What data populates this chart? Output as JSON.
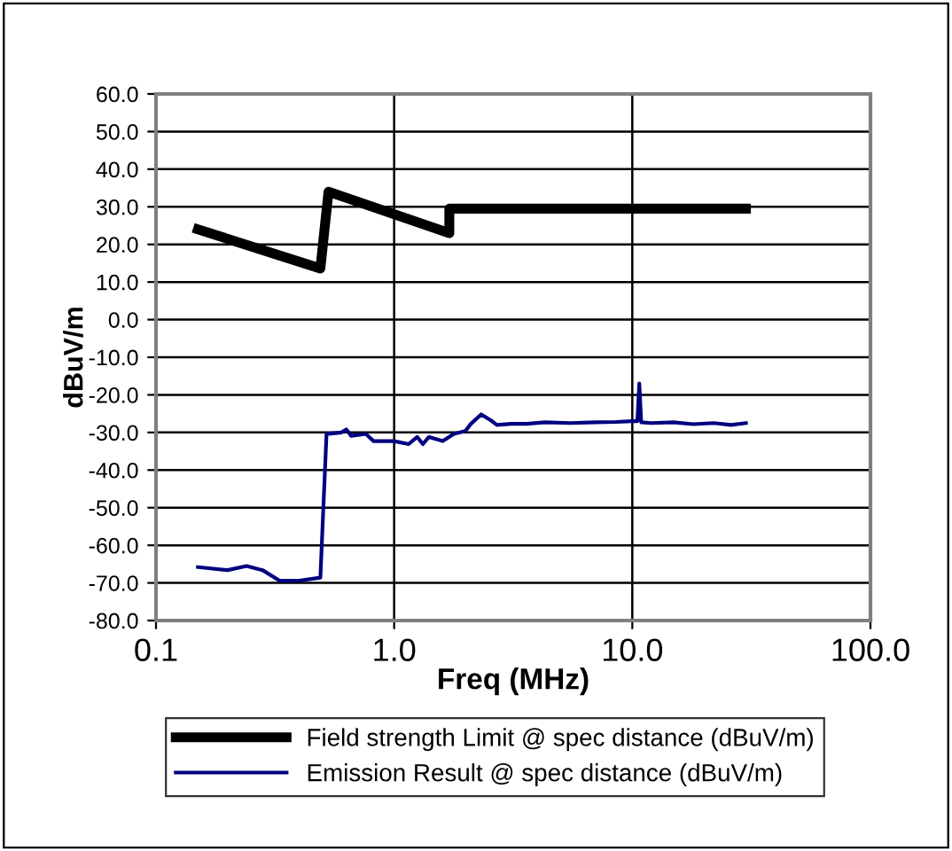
{
  "chart_data": {
    "type": "line",
    "xlabel": "Freq (MHz)",
    "ylabel": "dBuV/m",
    "log": "x",
    "xlim": [
      0.1,
      100
    ],
    "xticks": [
      {
        "value": 0.1,
        "label": "0.1"
      },
      {
        "value": 1,
        "label": "1.0"
      },
      {
        "value": 10,
        "label": "10.0"
      },
      {
        "value": 100,
        "label": "100.0"
      }
    ],
    "ylim": [
      -80,
      60
    ],
    "yticks": [
      {
        "value": -80,
        "label": "-80.0"
      },
      {
        "value": -70,
        "label": "-70.0"
      },
      {
        "value": -60,
        "label": "-60.0"
      },
      {
        "value": -50,
        "label": "-50.0"
      },
      {
        "value": -40,
        "label": "-40.0"
      },
      {
        "value": -30,
        "label": "-30.0"
      },
      {
        "value": -20,
        "label": "-20.0"
      },
      {
        "value": -10,
        "label": "-10.0"
      },
      {
        "value": 0,
        "label": "0.0"
      },
      {
        "value": 10,
        "label": "10.0"
      },
      {
        "value": 20,
        "label": "20.0"
      },
      {
        "value": 30,
        "label": "30.0"
      },
      {
        "value": 40,
        "label": "40.0"
      },
      {
        "value": 50,
        "label": "50.0"
      },
      {
        "value": 60,
        "label": "60.0"
      }
    ],
    "grid": true,
    "legend": "bottom",
    "series": [
      {
        "name": "Field strength Limit @ spec distance (dBuV/m)",
        "color": "#000000",
        "x": [
          0.15,
          0.49,
          0.53,
          1.705,
          1.705,
          30
        ],
        "values": [
          24,
          13.6,
          34,
          23,
          29.5,
          29.5
        ]
      },
      {
        "name": "Emission Result @ spec distance (dBuV/m)",
        "color": "#000080",
        "x": [
          0.15,
          0.2,
          0.24,
          0.28,
          0.33,
          0.4,
          0.49,
          0.52,
          0.6,
          0.63,
          0.66,
          0.76,
          0.82,
          1.0,
          1.15,
          1.25,
          1.32,
          1.4,
          1.6,
          1.78,
          1.99,
          2.1,
          2.32,
          2.55,
          2.7,
          3.1,
          3.6,
          4.3,
          5.5,
          7,
          8.5,
          10,
          10.5,
          10.7,
          10.9,
          12,
          15,
          18,
          22,
          26,
          30
        ],
        "values": [
          -65.8,
          -66.6,
          -65.5,
          -66.6,
          -69.4,
          -69.4,
          -68.6,
          -30.4,
          -30,
          -29.2,
          -30.9,
          -30.4,
          -32.3,
          -32.3,
          -33.1,
          -31.2,
          -33.1,
          -31.2,
          -32.3,
          -30.4,
          -29.6,
          -27.7,
          -25.2,
          -26.8,
          -28,
          -27.7,
          -27.7,
          -27.3,
          -27.5,
          -27.3,
          -27.2,
          -27,
          -27,
          -17,
          -27.3,
          -27.5,
          -27.3,
          -27.8,
          -27.5,
          -28,
          -27.5
        ]
      }
    ]
  }
}
